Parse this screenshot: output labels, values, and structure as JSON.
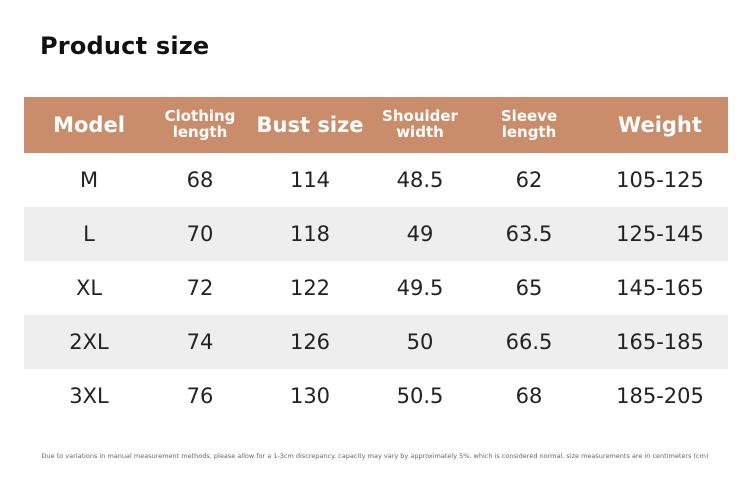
{
  "page": {
    "title": "Product size",
    "note": "Due to variations in manual measurement methods, please allow for a 1-3cm discrepancy. capacity may vary by approximately 5%, which is considered normal. size measurements are in centimeters (cm)"
  },
  "colors": {
    "header_bg": "#c98d6b",
    "header_text": "#ffffff",
    "row_shade": "#eeeeee"
  },
  "table": {
    "headers": [
      {
        "lines": [
          "Model"
        ],
        "size": "big"
      },
      {
        "lines": [
          "Clothing",
          "length"
        ],
        "size": "small"
      },
      {
        "lines": [
          "Bust size"
        ],
        "size": "big"
      },
      {
        "lines": [
          "Shoulder",
          "width"
        ],
        "size": "small"
      },
      {
        "lines": [
          "Sleeve",
          "length"
        ],
        "size": "small"
      },
      {
        "lines": [
          "Weight"
        ],
        "size": "big"
      }
    ],
    "rows": [
      [
        "M",
        "68",
        "114",
        "48.5",
        "62",
        "105-125"
      ],
      [
        "L",
        "70",
        "118",
        "49",
        "63.5",
        "125-145"
      ],
      [
        "XL",
        "72",
        "122",
        "49.5",
        "65",
        "145-165"
      ],
      [
        "2XL",
        "74",
        "126",
        "50",
        "66.5",
        "165-185"
      ],
      [
        "3XL",
        "76",
        "130",
        "50.5",
        "68",
        "185-205"
      ]
    ]
  }
}
